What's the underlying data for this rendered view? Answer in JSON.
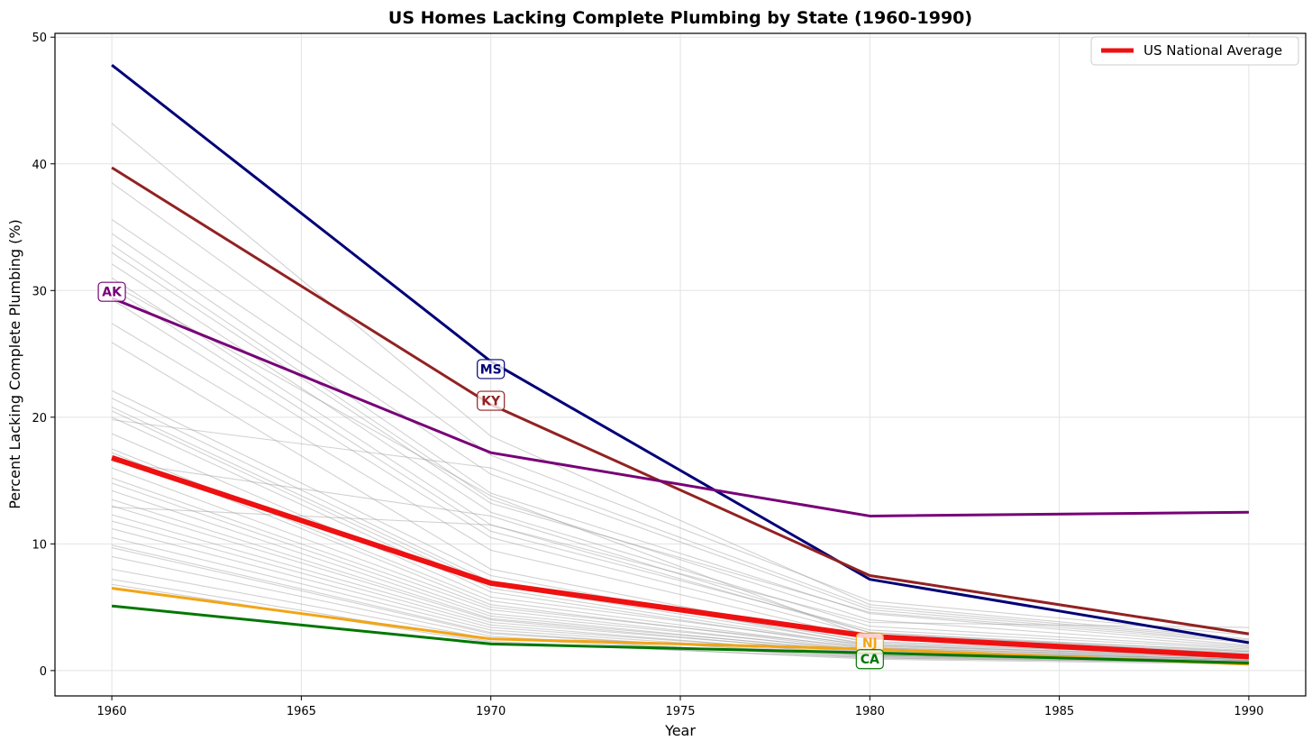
{
  "chart_data": {
    "type": "line",
    "title": "US Homes Lacking Complete Plumbing by State (1960-1990)",
    "xlabel": "Year",
    "ylabel": "Percent Lacking Complete Plumbing (%)",
    "xlim": [
      1958.5,
      1991.5
    ],
    "ylim": [
      -2,
      50.3
    ],
    "xticks": [
      1960,
      1965,
      1970,
      1975,
      1980,
      1985,
      1990
    ],
    "yticks": [
      0,
      10,
      20,
      30,
      40,
      50
    ],
    "x": [
      1960,
      1970,
      1980,
      1990
    ],
    "grid": true,
    "legend": {
      "position": "top-right",
      "entries": [
        {
          "label": "US National Average",
          "color": "#ee1111"
        }
      ]
    },
    "background_series": [
      [
        43.2,
        18.5,
        5.2,
        2.5
      ],
      [
        38.5,
        17.0,
        5.5,
        2.8
      ],
      [
        35.6,
        15.5,
        4.8,
        2.3
      ],
      [
        34.5,
        14.0,
        4.5,
        2.0
      ],
      [
        33.6,
        13.5,
        4.0,
        1.9
      ],
      [
        33.0,
        13.2,
        4.6,
        2.2
      ],
      [
        32.1,
        12.5,
        3.5,
        1.8
      ],
      [
        31.0,
        11.5,
        3.0,
        1.5
      ],
      [
        30.2,
        11.0,
        3.2,
        1.7
      ],
      [
        29.3,
        10.5,
        2.8,
        1.6
      ],
      [
        27.4,
        9.5,
        2.5,
        1.4
      ],
      [
        25.9,
        8.0,
        2.2,
        1.2
      ],
      [
        22.1,
        7.5,
        2.0,
        1.1
      ],
      [
        21.5,
        7.0,
        2.3,
        1.3
      ],
      [
        20.8,
        6.8,
        2.1,
        1.2
      ],
      [
        20.5,
        6.5,
        1.9,
        1.1
      ],
      [
        20.0,
        6.2,
        1.8,
        1.0
      ],
      [
        18.7,
        5.8,
        2.0,
        1.1
      ],
      [
        17.5,
        5.5,
        1.7,
        1.0
      ],
      [
        17.2,
        5.2,
        1.6,
        0.9
      ],
      [
        16.0,
        5.0,
        1.8,
        1.0
      ],
      [
        15.2,
        4.8,
        1.5,
        0.9
      ],
      [
        14.8,
        4.5,
        1.6,
        0.9
      ],
      [
        14.2,
        4.3,
        1.4,
        0.8
      ],
      [
        13.5,
        4.1,
        1.5,
        0.9
      ],
      [
        13.0,
        4.0,
        1.3,
        0.8
      ],
      [
        12.3,
        3.8,
        1.4,
        0.8
      ],
      [
        11.8,
        3.6,
        1.2,
        0.7
      ],
      [
        11.2,
        3.4,
        1.3,
        0.8
      ],
      [
        10.5,
        3.2,
        1.2,
        0.7
      ],
      [
        9.9,
        3.0,
        1.1,
        0.7
      ],
      [
        9.7,
        2.9,
        1.2,
        0.7
      ],
      [
        9.0,
        2.7,
        1.0,
        0.6
      ],
      [
        8.0,
        2.5,
        1.1,
        0.6
      ],
      [
        7.2,
        2.3,
        0.9,
        0.5
      ],
      [
        6.8,
        2.2,
        1.0,
        0.6
      ],
      [
        19.8,
        16.0,
        5.0,
        2.4
      ],
      [
        30.5,
        13.8,
        2.6,
        1.5
      ],
      [
        12.9,
        11.5,
        3.8,
        3.4
      ],
      [
        16.5,
        12.2,
        3.0,
        1.3
      ]
    ],
    "series": [
      {
        "name": "MS",
        "color": "#000077",
        "values": [
          47.8,
          24.4,
          7.2,
          2.2
        ],
        "label_year": 1970,
        "label_value": 23.8
      },
      {
        "name": "KY",
        "color": "#922222",
        "values": [
          39.7,
          21.0,
          7.5,
          2.9
        ],
        "label_year": 1970,
        "label_value": 21.3
      },
      {
        "name": "AK",
        "color": "#770077",
        "values": [
          29.4,
          17.2,
          12.2,
          12.5
        ],
        "label_year": 1960,
        "label_value": 29.9
      },
      {
        "name": "NJ",
        "color": "#f2a516",
        "values": [
          6.5,
          2.5,
          1.7,
          0.5
        ],
        "label_year": 1980,
        "label_value": 2.2
      },
      {
        "name": "CA",
        "color": "#007700",
        "values": [
          5.1,
          2.1,
          1.4,
          0.6
        ],
        "label_year": 1980,
        "label_value": 0.9
      }
    ],
    "national_average": {
      "name": "US National Average",
      "color": "#ee1111",
      "values": [
        16.8,
        6.9,
        2.7,
        1.1
      ]
    }
  }
}
